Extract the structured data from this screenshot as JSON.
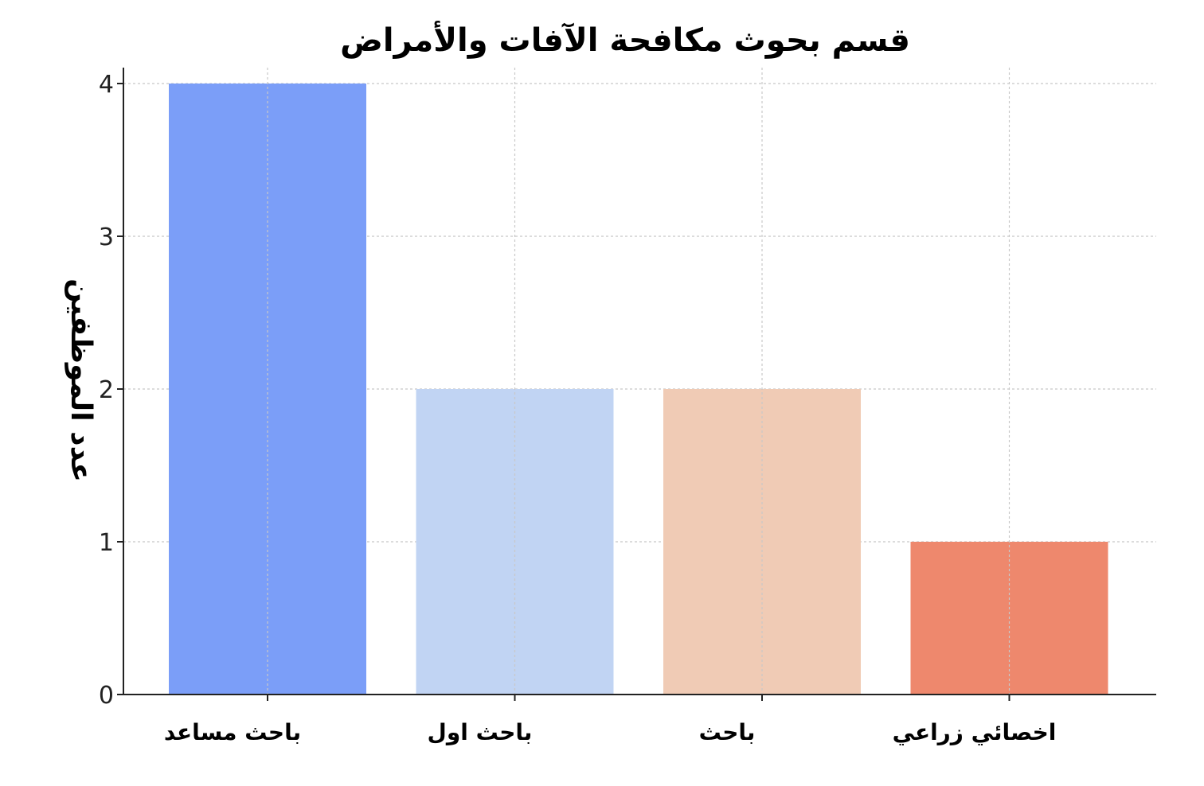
{
  "chart_data": {
    "type": "bar",
    "title": "قسم بحوث مكافحة الآفات والأمراض",
    "xlabel": "",
    "ylabel": "عدد الموظفين",
    "categories": [
      "باحث مساعد",
      "باحث اول",
      "باحث",
      "اخصائي زراعي"
    ],
    "values": [
      4,
      2,
      2,
      1
    ],
    "colors": [
      "#7b9ef8",
      "#c1d4f3",
      "#f0cbb5",
      "#ee886d"
    ],
    "ylim": [
      0,
      4
    ],
    "yticks": [
      "0",
      "1",
      "2",
      "3",
      "4"
    ],
    "grid": true,
    "legend": "none"
  }
}
